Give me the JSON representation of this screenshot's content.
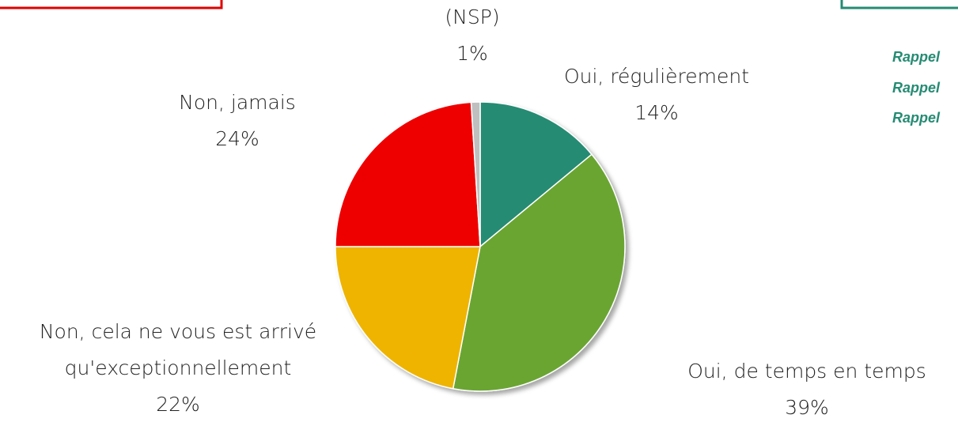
{
  "chart_data": {
    "type": "pie",
    "categories": [
      "Oui, régulièrement",
      "Oui, de temps en temps",
      "Non, cela ne vous est arrivé qu'exceptionnellement",
      "Non, jamais",
      "(NSP)"
    ],
    "values": [
      14,
      39,
      22,
      24,
      1
    ],
    "value_labels": [
      "14%",
      "39%",
      "22%",
      "24%",
      "1%"
    ],
    "colors": [
      "#258b73",
      "#6aa532",
      "#eeb400",
      "#ee0000",
      "#bfbfbf"
    ],
    "annotations": [
      "Rappel",
      "Rappel",
      "Rappel"
    ]
  }
}
